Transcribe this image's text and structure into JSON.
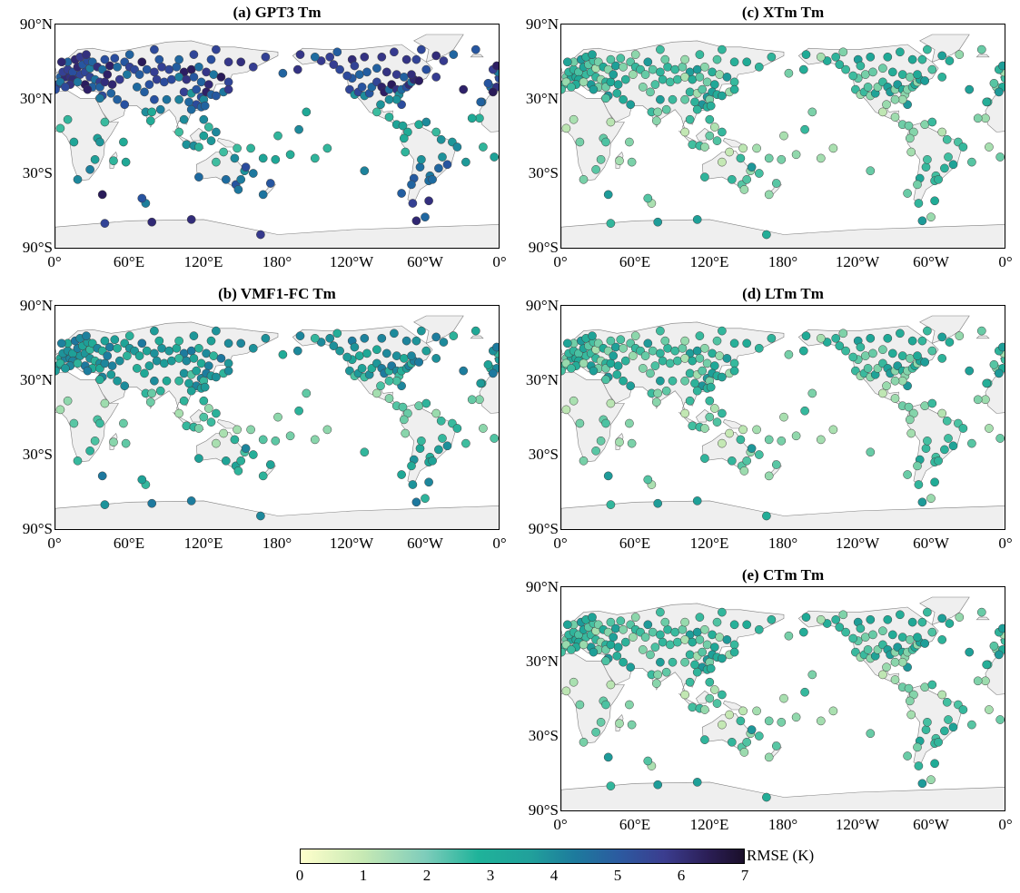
{
  "panels": [
    {
      "id": "a",
      "title": "(a) GPT3 Tm"
    },
    {
      "id": "c",
      "title": "(c) XTm Tm"
    },
    {
      "id": "b",
      "title": "(b) VMF1-FC Tm"
    },
    {
      "id": "d",
      "title": "(d) LTm Tm"
    },
    {
      "id": "e",
      "title": "(e) CTm Tm"
    }
  ],
  "lat_labels": [
    "90°N",
    "30°N",
    "30°S",
    "90°S"
  ],
  "lon_labels": [
    "0°",
    "60°E",
    "120°E",
    "180°",
    "120°W",
    "60°W",
    "0°"
  ],
  "colorbar": {
    "label": "RMSE (K)",
    "ticks": [
      "0",
      "1",
      "2",
      "3",
      "4",
      "5",
      "6",
      "7"
    ],
    "range": [
      0,
      7
    ]
  },
  "colors": {
    "land": "#efefef",
    "coast": "#808080",
    "station_outline": "#404040"
  },
  "stations_rmse": {
    "a": "high (mostly 3.5–6.5 K in mid/high latitudes, ~2–3 K in tropics)",
    "c": "low (~1–2.5 K)",
    "b": "moderate (~1.5–3.5 K)",
    "d": "low (~1–3 K)",
    "e": "low (~1–3 K)"
  }
}
